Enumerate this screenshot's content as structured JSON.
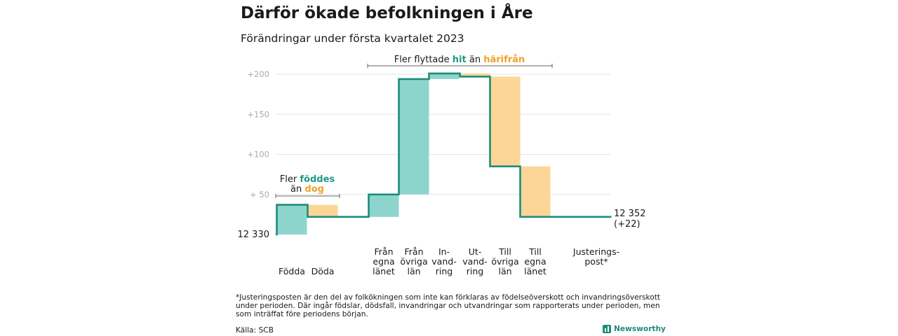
{
  "title": "Därför ökade befolkningen i Åre",
  "subtitle": "Förändringar under första kvartalet 2023",
  "colors": {
    "increase": "#8dd5cc",
    "decrease": "#fbd697",
    "line": "#1e8c79",
    "teal_text": "#1e9a86",
    "orange_text": "#eda22a",
    "axis_text": "#aaaaaa"
  },
  "annotations": {
    "births_prefix": "Fler ",
    "births_word": "föddes",
    "deaths_prefix": "än ",
    "deaths_word": "dog",
    "moves_prefix": "Fler flyttade ",
    "moves_hit": "hit",
    "moves_mid": " än ",
    "moves_harifran": "härifrån"
  },
  "start_label": "12 330",
  "end_label": "12 352",
  "end_change": "(+22)",
  "footnote": "*Justeringsposten är den del av folkökningen som inte kan förklaras av födelseöverskott och invandringsöverskott under perioden. Där ingår födslar, dödsfall, invandringar och utvandringar som rapporterats under perioden, men som inträffat före periodens början.",
  "source": "Källa: SCB",
  "brand": "Newsworthy",
  "chart_data": {
    "type": "waterfall",
    "start_value": 12330,
    "end_value": 12352,
    "y_ticks": [
      "+200",
      "+150",
      "+100",
      "+ 50"
    ],
    "y_tick_values": [
      200,
      150,
      100,
      50
    ],
    "ylim": [
      0,
      200
    ],
    "grid": true,
    "steps": [
      {
        "label": [
          "Födda"
        ],
        "change": 37
      },
      {
        "label": [
          "Döda"
        ],
        "change": -15
      },
      {
        "label": [
          "Från",
          "egna",
          "länet"
        ],
        "change": 28
      },
      {
        "label": [
          "Från",
          "övriga",
          "län"
        ],
        "change": 144
      },
      {
        "label": [
          "In-",
          "vand-",
          "ring"
        ],
        "change": 7
      },
      {
        "label": [
          "Ut-",
          "vand-",
          "ring"
        ],
        "change": -4
      },
      {
        "label": [
          "Till",
          "övriga",
          "län"
        ],
        "change": -112
      },
      {
        "label": [
          "Till",
          "egna",
          "länet"
        ],
        "change": -63
      },
      {
        "label": [
          "Justerings-",
          "post*"
        ],
        "change": 0
      }
    ]
  }
}
